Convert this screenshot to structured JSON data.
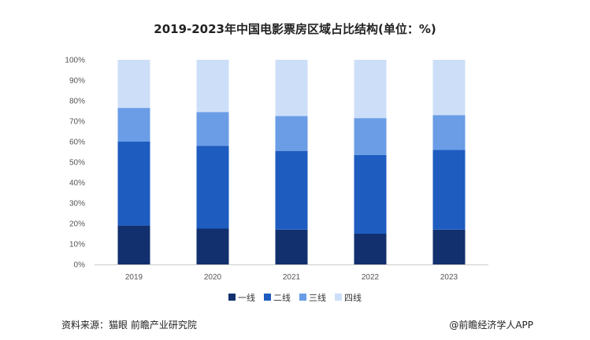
{
  "chart_data": {
    "type": "stacked-bar",
    "title": "2019-2023年中国电影票房区域占比结构(单位：%)",
    "categories": [
      "2019",
      "2020",
      "2021",
      "2022",
      "2023"
    ],
    "series": [
      {
        "name": "一线",
        "color": "#12306e",
        "values": [
          19,
          17.5,
          17,
          15,
          17
        ]
      },
      {
        "name": "二线",
        "color": "#1e5cc0",
        "values": [
          41,
          40.5,
          38.5,
          38.5,
          39
        ]
      },
      {
        "name": "三线",
        "color": "#6a9de6",
        "values": [
          16.5,
          16.5,
          17,
          18,
          17
        ]
      },
      {
        "name": "四线",
        "color": "#cddff8",
        "values": [
          23.5,
          25.5,
          27.5,
          28.5,
          27
        ]
      }
    ],
    "ylim": [
      0,
      100
    ],
    "yticks": [
      "0%",
      "10%",
      "20%",
      "30%",
      "40%",
      "50%",
      "60%",
      "70%",
      "80%",
      "90%",
      "100%"
    ],
    "legend_position": "bottom",
    "grid": false
  },
  "footer": {
    "source": "资料来源：猫眼 前瞻产业研究院",
    "credit": "@前瞻经济学人APP"
  }
}
